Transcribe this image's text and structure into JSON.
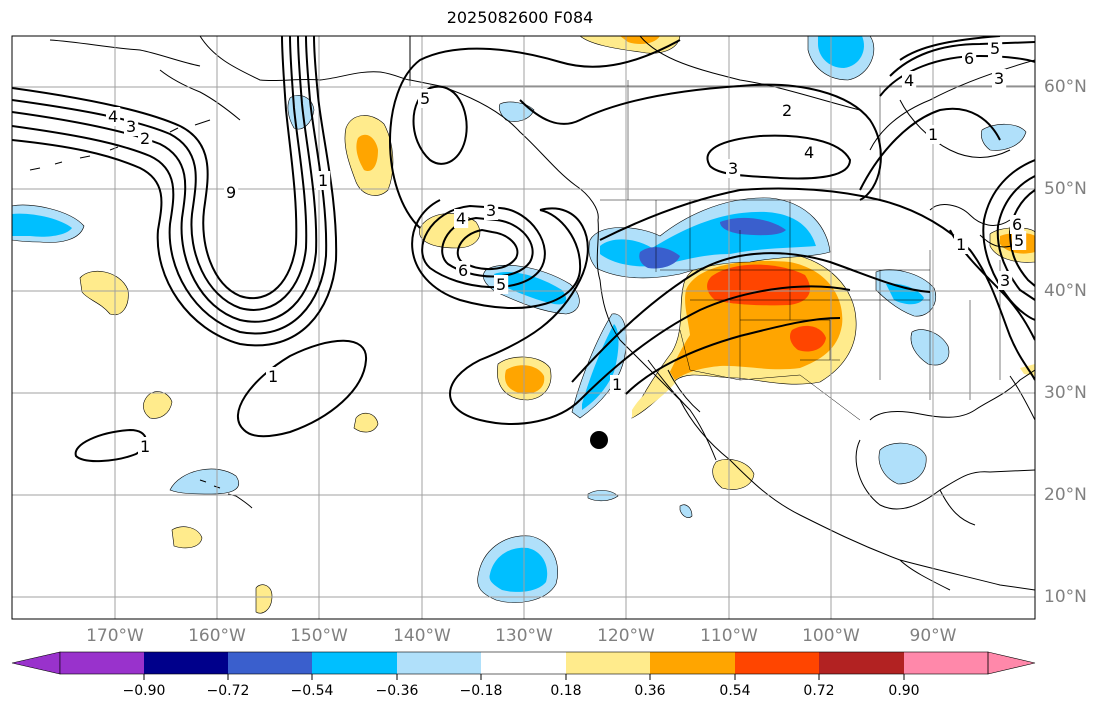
{
  "title": "2025082600 F084",
  "lat_labels": [
    "60°N",
    "50°N",
    "40°N",
    "30°N",
    "20°N",
    "10°N"
  ],
  "lon_labels": [
    "170°W",
    "160°W",
    "150°W",
    "140°W",
    "130°W",
    "120°W",
    "110°W",
    "100°W",
    "90°W"
  ],
  "contour_labels": [
    "4",
    "3",
    "2",
    "9",
    "1",
    "1",
    "1",
    "4",
    "3",
    "6",
    "5",
    "1",
    "5",
    "3",
    "2",
    "4",
    "3",
    "1",
    "6",
    "5",
    "4",
    "3",
    "6",
    "5",
    "1"
  ],
  "colorbar": {
    "ticks": [
      "−0.90",
      "−0.72",
      "−0.54",
      "−0.36",
      "−0.18",
      "0.18",
      "0.36",
      "0.54",
      "0.72",
      "0.90"
    ],
    "colors": [
      "#9932cc",
      "#00008b",
      "#3a5fcd",
      "#00bfff",
      "#b0e0fa",
      "#ffffff",
      "#ffeb8c",
      "#ffa500",
      "#ff4500",
      "#b22222",
      "#ff88aa"
    ]
  },
  "colors": {
    "land_outline": "#000000",
    "grid": "#a0a0a0",
    "contour": "#000000"
  },
  "marker": "storm-center-marker"
}
